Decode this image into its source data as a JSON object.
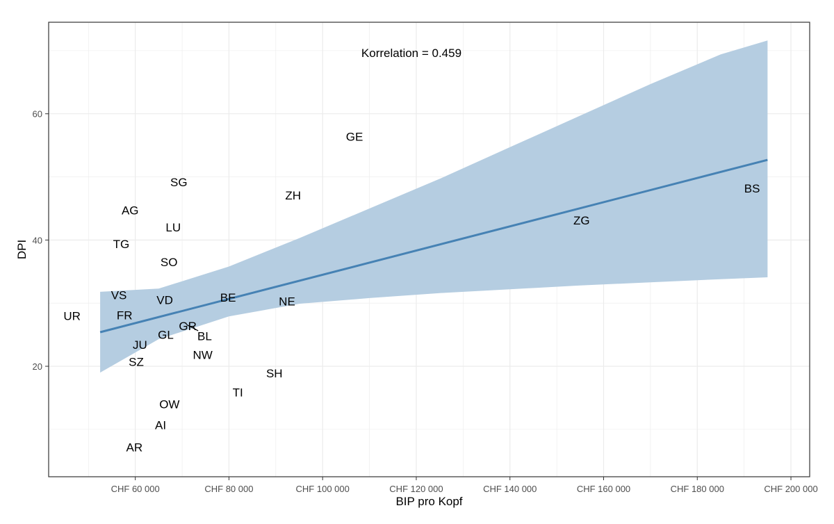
{
  "chart_data": {
    "type": "scatter",
    "title": "",
    "xlabel": "BIP pro Kopf",
    "ylabel": "DPI",
    "annotation": "Korrelation = 0.459",
    "grid": true,
    "xlim": [
      41500,
      204000
    ],
    "ylim": [
      2.5,
      74.5
    ],
    "x_ticks": [
      60000,
      80000,
      100000,
      120000,
      140000,
      160000,
      180000,
      200000
    ],
    "x_tick_labels": [
      "CHF 60 000",
      "CHF 80 000",
      "CHF 100 000",
      "CHF 120 000",
      "CHF 140 000",
      "CHF 160 000",
      "CHF 180 000",
      "CHF 200 000"
    ],
    "y_ticks": [
      20,
      40,
      60
    ],
    "y_tick_labels": [
      "20",
      "40",
      "60"
    ],
    "points": [
      {
        "label": "UR",
        "x": 46500,
        "y": 28.0
      },
      {
        "label": "AG",
        "x": 58900,
        "y": 44.7
      },
      {
        "label": "TG",
        "x": 57000,
        "y": 39.4
      },
      {
        "label": "VS",
        "x": 56500,
        "y": 31.3
      },
      {
        "label": "FR",
        "x": 57700,
        "y": 28.1
      },
      {
        "label": "SZ",
        "x": 60200,
        "y": 20.7
      },
      {
        "label": "JU",
        "x": 61000,
        "y": 23.4
      },
      {
        "label": "AR",
        "x": 59800,
        "y": 7.2
      },
      {
        "label": "AI",
        "x": 65400,
        "y": 10.7
      },
      {
        "label": "VD",
        "x": 66300,
        "y": 30.5
      },
      {
        "label": "GR",
        "x": 71200,
        "y": 26.4
      },
      {
        "label": "GL",
        "x": 66500,
        "y": 25.0
      },
      {
        "label": "OW",
        "x": 67300,
        "y": 14.0
      },
      {
        "label": "SO",
        "x": 67200,
        "y": 36.5
      },
      {
        "label": "LU",
        "x": 68100,
        "y": 42.0
      },
      {
        "label": "SG",
        "x": 69300,
        "y": 49.2
      },
      {
        "label": "BL",
        "x": 74800,
        "y": 24.8
      },
      {
        "label": "NW",
        "x": 74400,
        "y": 21.8
      },
      {
        "label": "BE",
        "x": 79800,
        "y": 30.9
      },
      {
        "label": "TI",
        "x": 81900,
        "y": 15.9
      },
      {
        "label": "SH",
        "x": 89700,
        "y": 18.9
      },
      {
        "label": "NE",
        "x": 92400,
        "y": 30.3
      },
      {
        "label": "ZH",
        "x": 93700,
        "y": 47.1
      },
      {
        "label": "GE",
        "x": 106800,
        "y": 56.4
      },
      {
        "label": "ZG",
        "x": 155300,
        "y": 43.1
      },
      {
        "label": "BS",
        "x": 191700,
        "y": 48.2
      }
    ],
    "regression": {
      "x": [
        52500,
        195000
      ],
      "y": [
        25.4,
        52.7
      ],
      "ci_x": [
        52500,
        65000,
        80000,
        95000,
        110000,
        125000,
        140000,
        155000,
        170000,
        185000,
        195000
      ],
      "ci_lower": [
        19.0,
        24.3,
        27.9,
        29.9,
        30.8,
        31.6,
        32.2,
        32.8,
        33.3,
        33.8,
        34.1
      ],
      "ci_upper": [
        31.8,
        32.3,
        35.8,
        40.3,
        45.0,
        49.7,
        54.7,
        59.7,
        64.7,
        69.4,
        71.6
      ],
      "color": "#4682b4",
      "band_color": "#b5cde1"
    },
    "colors": {
      "grid": "#ebebeb",
      "panel_border": "#333333",
      "text": "#000000",
      "tick_text": "#4d4d4d"
    }
  }
}
